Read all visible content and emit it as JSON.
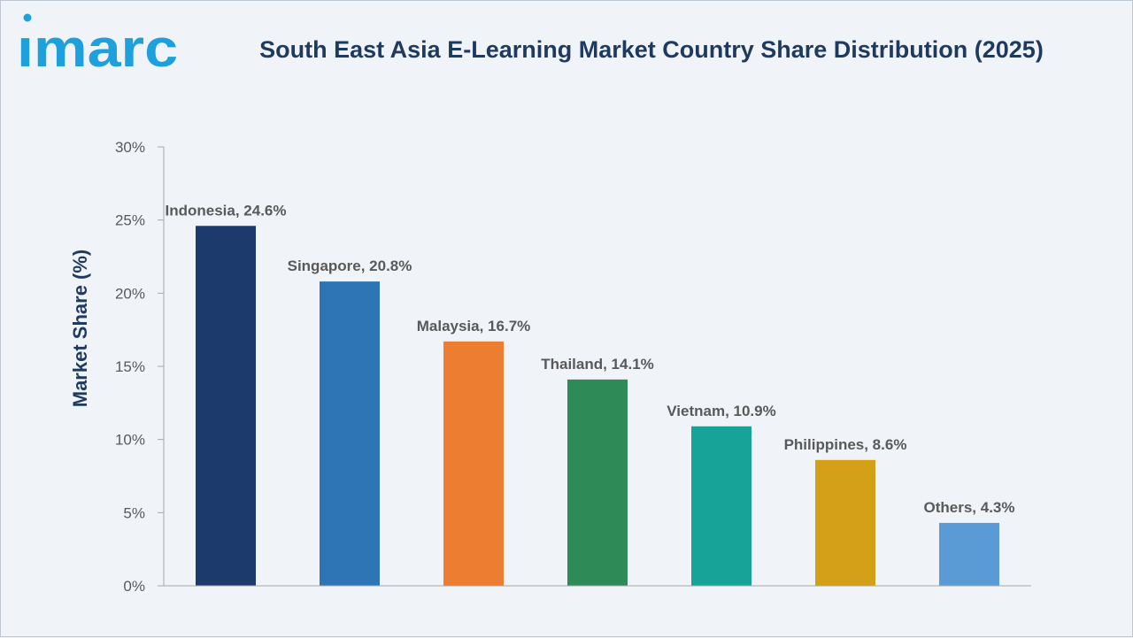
{
  "brand": {
    "logo_text": "imarc",
    "logo_color": "#1ea0dc"
  },
  "header": {
    "title": "South East Asia E-Learning Market Country Share Distribution (2025)"
  },
  "chart_data": {
    "type": "bar",
    "title": "South East Asia E-Learning Market Country Share Distribution (2025)",
    "xlabel": "",
    "ylabel": "Market Share (%)",
    "ylim": [
      0,
      30
    ],
    "yticks": [
      0,
      5,
      10,
      15,
      20,
      25,
      30
    ],
    "ytick_labels": [
      "0%",
      "5%",
      "10%",
      "15%",
      "20%",
      "25%",
      "30%"
    ],
    "grid": false,
    "legend": "none",
    "categories": [
      "Indonesia",
      "Singapore",
      "Malaysia",
      "Thailand",
      "Vietnam",
      "Philippines",
      "Others"
    ],
    "values": [
      24.6,
      20.8,
      16.7,
      14.1,
      10.9,
      8.6,
      4.3
    ],
    "data_labels": [
      "Indonesia, 24.6%",
      "Singapore, 20.8%",
      "Malaysia, 16.7%",
      "Thailand, 14.1%",
      "Vietnam, 10.9%",
      "Philippines, 8.6%",
      "Others, 4.3%"
    ],
    "colors": [
      "#1c3a6b",
      "#2e75b6",
      "#ed7d31",
      "#2e8b57",
      "#17a398",
      "#d4a017",
      "#5b9bd5"
    ],
    "text_color": "#595959",
    "axis_color": "#a6a6a6"
  }
}
